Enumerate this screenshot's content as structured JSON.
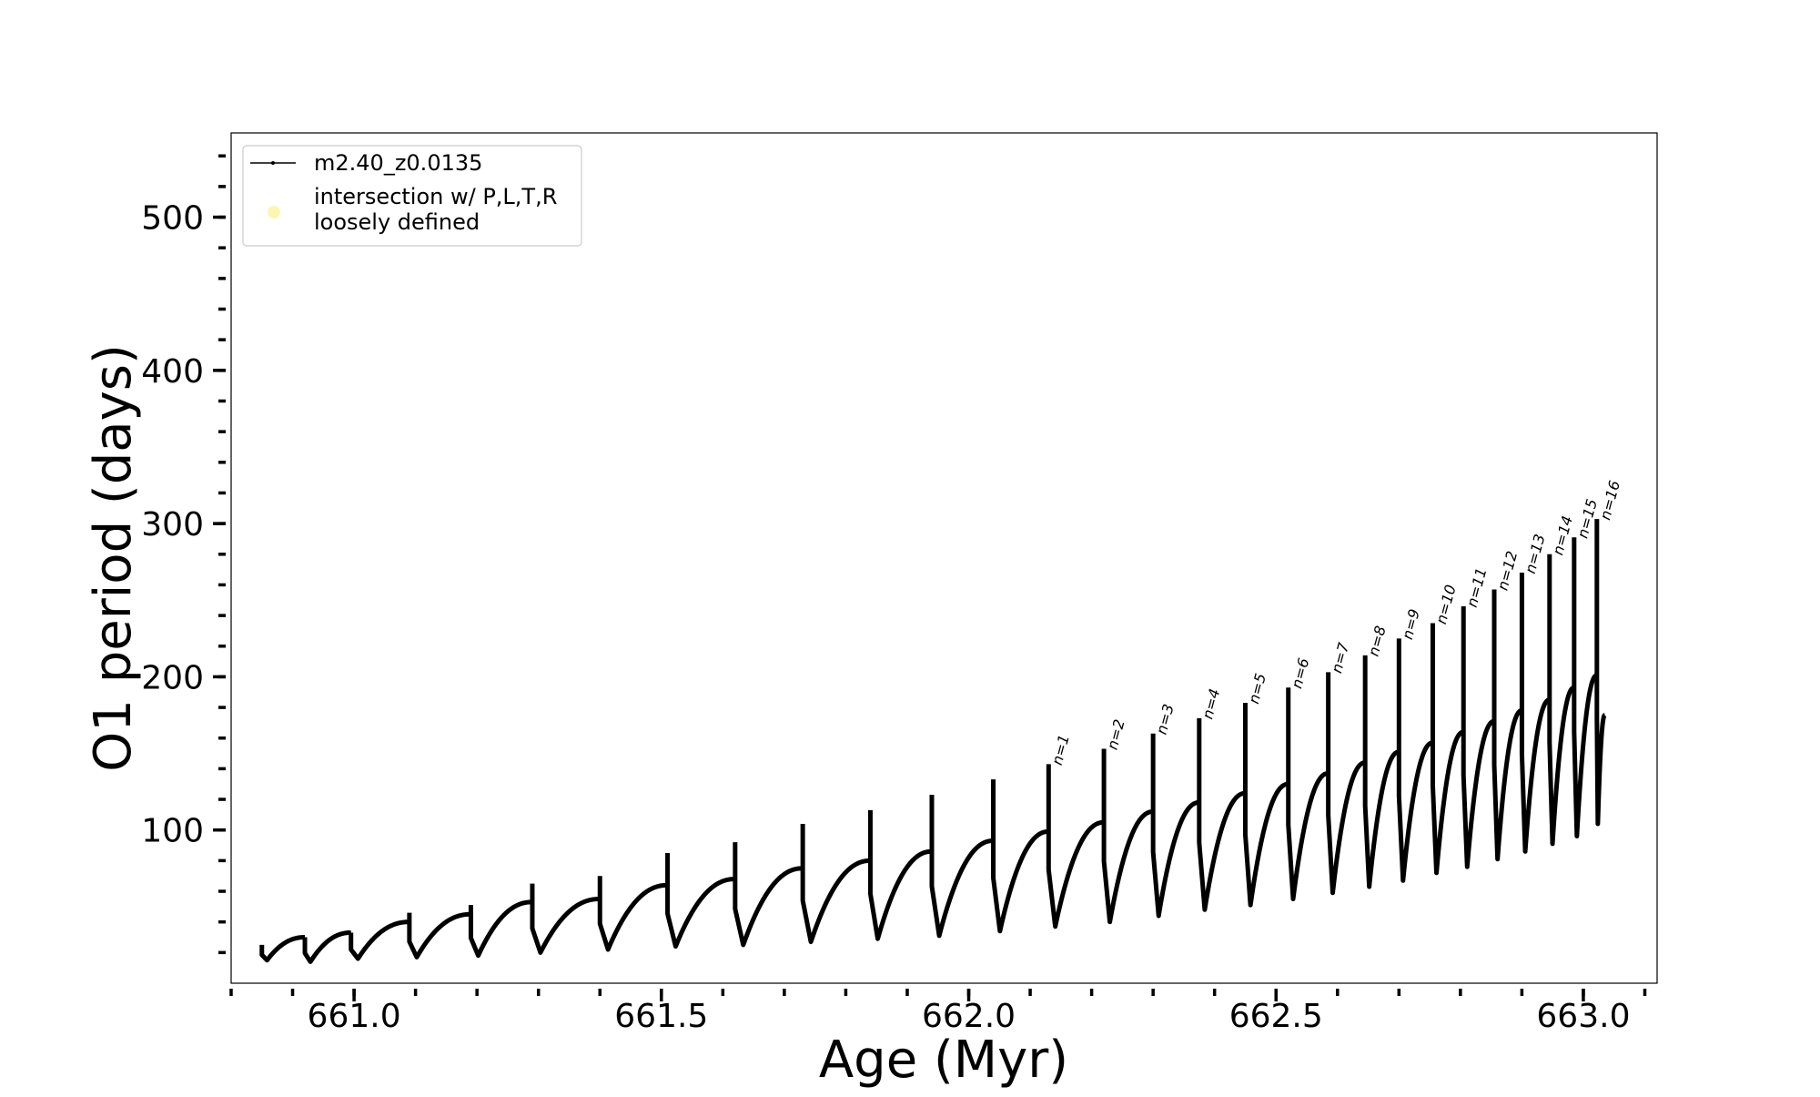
{
  "chart_data": {
    "type": "line",
    "xlabel": "Age (Myr)",
    "ylabel": "O1 period (days)",
    "xlim": [
      660.8,
      663.12
    ],
    "ylim": [
      0,
      555
    ],
    "x_ticks": [
      661.0,
      661.5,
      662.0,
      662.5,
      663.0
    ],
    "x_tick_labels": [
      "661.0",
      "661.5",
      "662.0",
      "662.5",
      "663.0"
    ],
    "y_ticks": [
      100,
      200,
      300,
      400,
      500
    ],
    "y_tick_labels": [
      "100",
      "200",
      "300",
      "400",
      "500"
    ],
    "grid": false,
    "legend": {
      "location": "top-left",
      "entries": [
        {
          "label": "m2.40_z0.0135",
          "marker": "line-with-dots",
          "color": "#000000"
        },
        {
          "label_lines": [
            "intersection w/ P,L,T,R",
            "loosely defined"
          ],
          "marker": "circle",
          "color": "#fdf6b2"
        }
      ]
    },
    "series": [
      {
        "name": "m2.40_z0.0135",
        "color": "#000000",
        "pulses": [
          {
            "start": 660.85,
            "peak": 25,
            "min": 15,
            "end_value": 30
          },
          {
            "start": 660.92,
            "peak": 30,
            "min": 14,
            "end_value": 33
          },
          {
            "start": 660.995,
            "peak": 33,
            "min": 16,
            "end_value": 40
          },
          {
            "start": 661.09,
            "peak": 46,
            "min": 17,
            "end_value": 45
          },
          {
            "start": 661.19,
            "peak": 51,
            "min": 18,
            "end_value": 53
          },
          {
            "start": 661.29,
            "peak": 65,
            "min": 20,
            "end_value": 55
          },
          {
            "start": 661.4,
            "peak": 70,
            "min": 22,
            "end_value": 64
          },
          {
            "start": 661.51,
            "peak": 85,
            "min": 24,
            "end_value": 68
          },
          {
            "start": 661.62,
            "peak": 92,
            "min": 25,
            "end_value": 75
          },
          {
            "start": 661.73,
            "peak": 104,
            "min": 27,
            "end_value": 80
          },
          {
            "start": 661.84,
            "peak": 113,
            "min": 29,
            "end_value": 86
          },
          {
            "start": 661.94,
            "peak": 123,
            "min": 31,
            "end_value": 93
          },
          {
            "start": 662.04,
            "peak": 133,
            "min": 34,
            "end_value": 99
          },
          {
            "start": 662.13,
            "peak": 143,
            "min": 37,
            "end_value": 105
          },
          {
            "start": 662.22,
            "peak": 153,
            "min": 40,
            "end_value": 112
          },
          {
            "start": 662.3,
            "peak": 163,
            "min": 44,
            "end_value": 118
          },
          {
            "start": 662.375,
            "peak": 173,
            "min": 48,
            "end_value": 124
          },
          {
            "start": 662.45,
            "peak": 183,
            "min": 51,
            "end_value": 130
          },
          {
            "start": 662.52,
            "peak": 193,
            "min": 55,
            "end_value": 137
          },
          {
            "start": 662.585,
            "peak": 203,
            "min": 59,
            "end_value": 144
          },
          {
            "start": 662.645,
            "peak": 214,
            "min": 63,
            "end_value": 151
          },
          {
            "start": 662.7,
            "peak": 225,
            "min": 67,
            "end_value": 157
          },
          {
            "start": 662.755,
            "peak": 235,
            "min": 72,
            "end_value": 164
          },
          {
            "start": 662.805,
            "peak": 246,
            "min": 76,
            "end_value": 171
          },
          {
            "start": 662.855,
            "peak": 257,
            "min": 81,
            "end_value": 178
          },
          {
            "start": 662.9,
            "peak": 268,
            "min": 86,
            "end_value": 185
          },
          {
            "start": 662.945,
            "peak": 280,
            "min": 91,
            "end_value": 193
          },
          {
            "start": 662.985,
            "peak": 291,
            "min": 96,
            "end_value": 201
          },
          {
            "start": 663.022,
            "peak": 303,
            "min": 104,
            "end_value": 175
          }
        ],
        "end_x": 663.035
      }
    ],
    "annotations": [
      {
        "text": "n=1",
        "x": 662.13,
        "y": 143
      },
      {
        "text": "n=2",
        "x": 662.22,
        "y": 153
      },
      {
        "text": "n=3",
        "x": 662.3,
        "y": 163
      },
      {
        "text": "n=4",
        "x": 662.375,
        "y": 173
      },
      {
        "text": "n=5",
        "x": 662.45,
        "y": 183
      },
      {
        "text": "n=6",
        "x": 662.52,
        "y": 193
      },
      {
        "text": "n=7",
        "x": 662.585,
        "y": 203
      },
      {
        "text": "n=8",
        "x": 662.645,
        "y": 214
      },
      {
        "text": "n=9",
        "x": 662.7,
        "y": 225
      },
      {
        "text": "n=10",
        "x": 662.755,
        "y": 235
      },
      {
        "text": "n=11",
        "x": 662.805,
        "y": 246
      },
      {
        "text": "n=12",
        "x": 662.855,
        "y": 257
      },
      {
        "text": "n=13",
        "x": 662.9,
        "y": 268
      },
      {
        "text": "n=14",
        "x": 662.945,
        "y": 280
      },
      {
        "text": "n=15",
        "x": 662.985,
        "y": 291
      },
      {
        "text": "n=16",
        "x": 663.022,
        "y": 303
      }
    ]
  }
}
